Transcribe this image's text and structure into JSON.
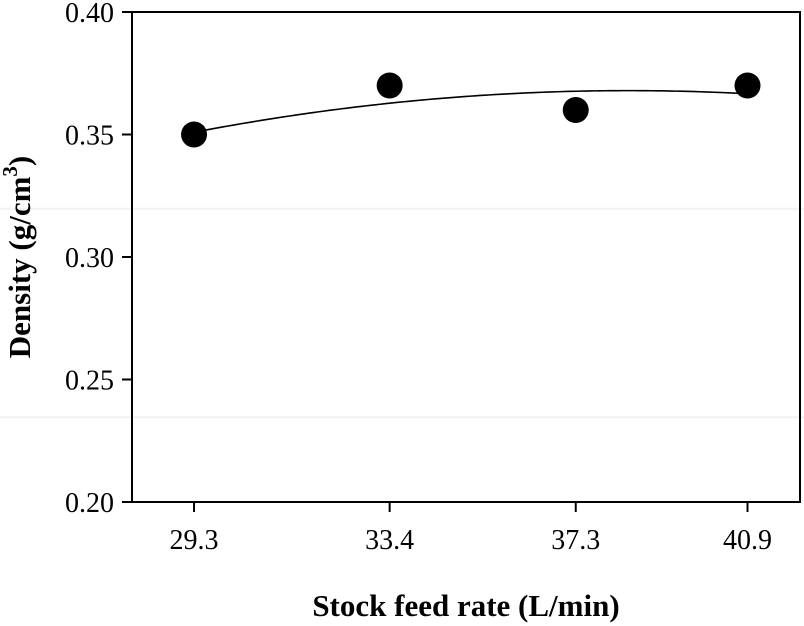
{
  "figure": {
    "background_color": "#ffffff",
    "foreground_color": "#000000"
  },
  "chart_data": {
    "type": "scatter",
    "title": "",
    "xlabel": "Stock feed rate (L/min)",
    "ylabel": "Density (g/cm³)",
    "ylabel_parts": {
      "pre": "Density (g/cm",
      "sup": "3",
      "post": ")"
    },
    "x": [
      29.3,
      33.4,
      37.3,
      40.9
    ],
    "y": [
      0.35,
      0.37,
      0.36,
      0.37
    ],
    "xlim": [
      28,
      42
    ],
    "ylim": [
      0.2,
      0.4
    ],
    "x_ticks": [
      29.3,
      33.4,
      37.3,
      40.9
    ],
    "x_tick_labels": [
      "29.3",
      "33.4",
      "37.3",
      "40.9"
    ],
    "y_ticks": [
      0.2,
      0.25,
      0.3,
      0.35,
      0.4
    ],
    "y_tick_labels": [
      "0.20",
      "0.25",
      "0.30",
      "0.35",
      "0.40"
    ],
    "grid": false,
    "legend": null,
    "frame": "full-box",
    "tick_direction": "out",
    "marker": {
      "shape": "circle",
      "radius_px": 13,
      "color": "#000000"
    },
    "fit_curve": {
      "type": "quadratic",
      "c2": -0.000205,
      "c1": 0.015747,
      "c0": 0.065509,
      "x_start": 29.3,
      "x_end": 40.9,
      "color": "#000000"
    },
    "colors": {
      "axis": "#000000",
      "text": "#000000",
      "background": "#ffffff"
    }
  }
}
